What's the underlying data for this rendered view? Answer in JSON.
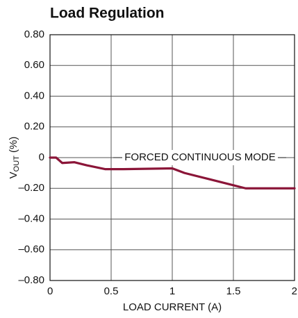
{
  "chart_data": {
    "type": "line",
    "title": "Load Regulation",
    "xlabel": "LOAD CURRENT (A)",
    "ylabel_parts": [
      "V",
      "OUT",
      " (%)"
    ],
    "annotation": "FORCED CONTINUOUS MODE",
    "x": [
      0,
      0.05,
      0.1,
      0.2,
      0.3,
      0.45,
      0.6,
      1.0,
      1.1,
      1.3,
      1.5,
      1.6,
      1.7,
      2.0
    ],
    "series": [
      {
        "name": "FORCED CONTINUOUS MODE",
        "color": "#8b1538",
        "values": [
          0,
          0,
          -0.035,
          -0.03,
          -0.05,
          -0.075,
          -0.075,
          -0.07,
          -0.1,
          -0.14,
          -0.18,
          -0.2,
          -0.2,
          -0.2
        ]
      }
    ],
    "xlim": [
      0,
      2
    ],
    "xticks": [
      0,
      0.5,
      1,
      1.5,
      2
    ],
    "ylim": [
      -0.8,
      0.8
    ],
    "yticks": [
      {
        "value": -0.8,
        "label": "–0.80"
      },
      {
        "value": -0.6,
        "label": "–0.60"
      },
      {
        "value": -0.4,
        "label": "–0.40"
      },
      {
        "value": -0.2,
        "label": "–0.20"
      },
      0,
      {
        "value": 0.2,
        "label": "0.20"
      },
      {
        "value": 0.4,
        "label": "0.40"
      },
      {
        "value": 0.6,
        "label": "0.60"
      },
      {
        "value": 0.8,
        "label": "0.80"
      }
    ],
    "grid": true
  }
}
